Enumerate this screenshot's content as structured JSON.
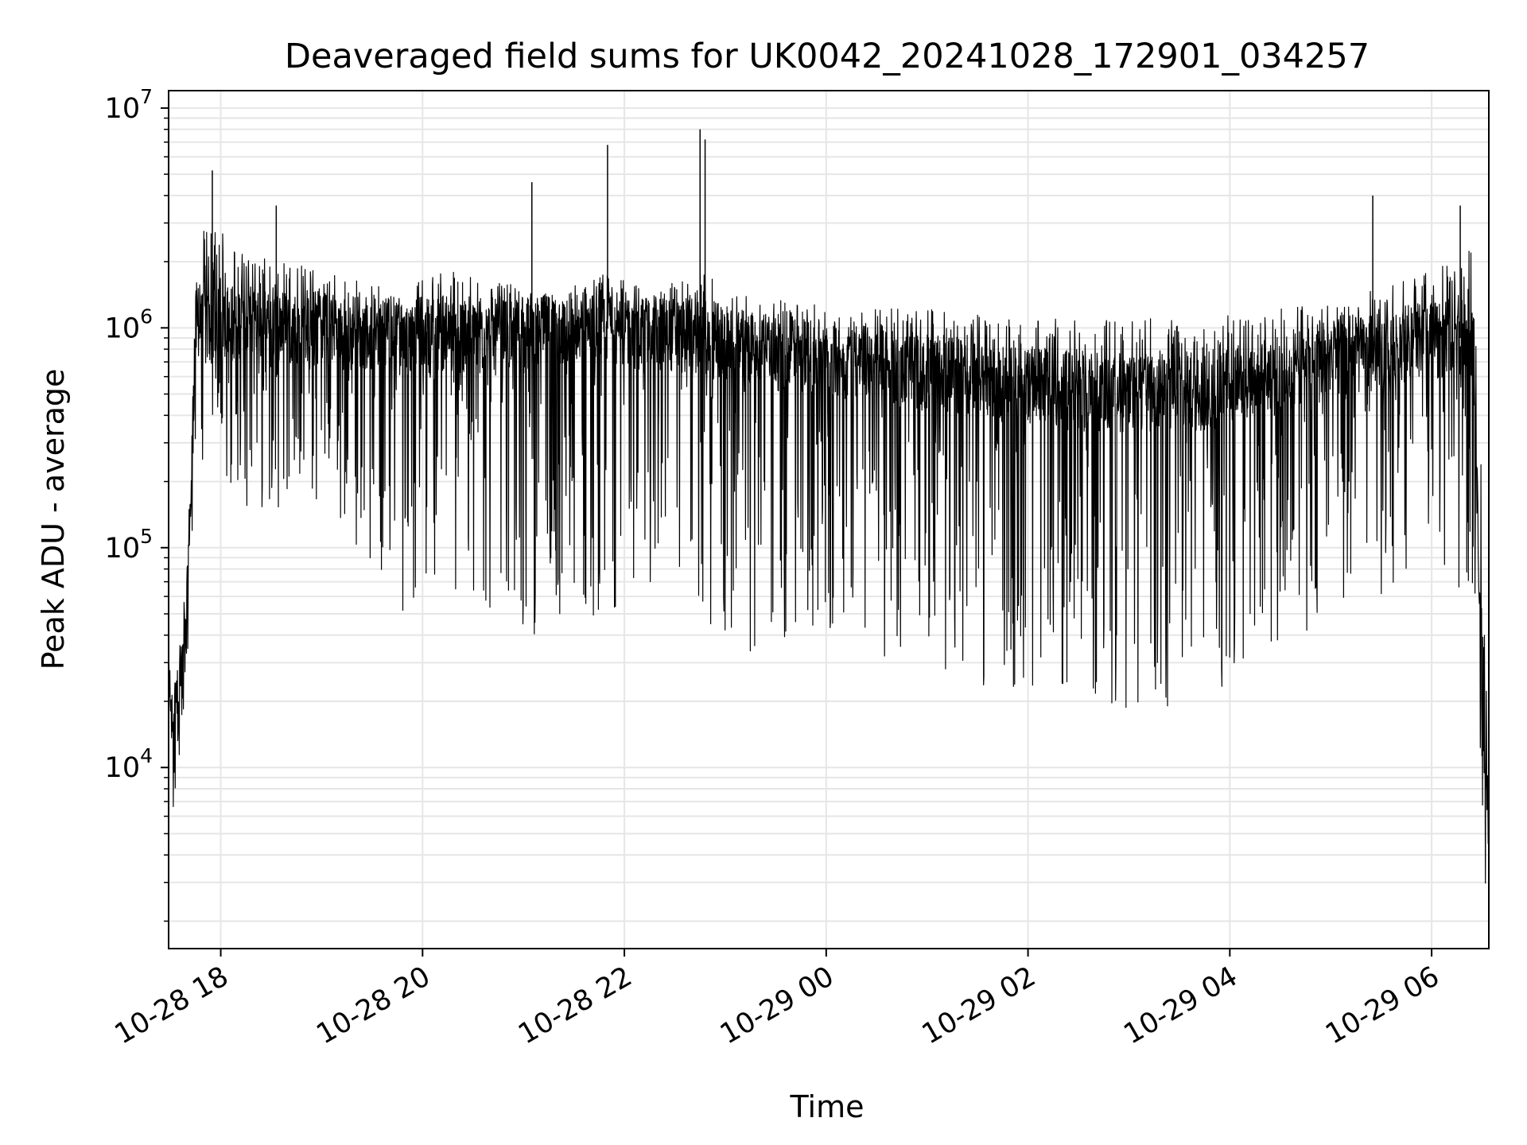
{
  "chart_data": {
    "type": "line",
    "title": "Deaveraged field sums for UK0042_20241028_172901_034257",
    "xlabel": "Time",
    "ylabel": "Peak ADU - average",
    "yscale": "log",
    "ylim": [
      1500,
      12000000
    ],
    "xlim": [
      "2024-10-28 17:29",
      "2024-10-29 06:34"
    ],
    "x_ticks": [
      {
        "label": "10-28 18",
        "time": "2024-10-28 18:00"
      },
      {
        "label": "10-28 20",
        "time": "2024-10-28 20:00"
      },
      {
        "label": "10-28 22",
        "time": "2024-10-28 22:00"
      },
      {
        "label": "10-29 00",
        "time": "2024-10-29 00:00"
      },
      {
        "label": "10-29 02",
        "time": "2024-10-29 02:00"
      },
      {
        "label": "10-29 04",
        "time": "2024-10-29 04:00"
      },
      {
        "label": "10-29 06",
        "time": "2024-10-29 06:00"
      }
    ],
    "y_ticks": [
      {
        "base": "10",
        "exp": "4",
        "value": 10000
      },
      {
        "base": "10",
        "exp": "5",
        "value": 100000
      },
      {
        "base": "10",
        "exp": "6",
        "value": 1000000
      },
      {
        "base": "10",
        "exp": "7",
        "value": 10000000
      }
    ],
    "grid": true,
    "series": [
      {
        "color": "#000000",
        "envelope_note": "dense noisy signal; values approximate",
        "x": [
          "2024-10-28 17:29",
          "2024-10-28 17:35",
          "2024-10-28 17:40",
          "2024-10-28 17:45",
          "2024-10-28 17:50",
          "2024-10-28 17:55",
          "2024-10-28 18:15",
          "2024-10-28 18:45",
          "2024-10-28 19:15",
          "2024-10-28 19:45",
          "2024-10-28 20:15",
          "2024-10-28 20:45",
          "2024-10-28 21:15",
          "2024-10-28 21:45",
          "2024-10-28 22:15",
          "2024-10-28 22:45",
          "2024-10-28 23:15",
          "2024-10-28 23:45",
          "2024-10-29 00:15",
          "2024-10-29 00:45",
          "2024-10-29 01:15",
          "2024-10-29 01:45",
          "2024-10-29 02:15",
          "2024-10-29 02:45",
          "2024-10-29 03:15",
          "2024-10-29 03:45",
          "2024-10-29 04:15",
          "2024-10-29 04:45",
          "2024-10-29 05:15",
          "2024-10-29 05:45",
          "2024-10-29 06:15",
          "2024-10-29 06:25",
          "2024-10-29 06:30",
          "2024-10-29 06:34"
        ],
        "upper": [
          30000,
          40000,
          80000,
          1500000,
          2800000,
          3000000,
          2200000,
          2000000,
          1700000,
          1500000,
          1900000,
          1600000,
          1500000,
          1800000,
          1500000,
          1800000,
          1400000,
          1300000,
          1200000,
          1300000,
          1200000,
          1100000,
          1100000,
          1100000,
          1150000,
          1100000,
          1200000,
          1300000,
          1400000,
          1700000,
          2000000,
          2500000,
          200000,
          60000
        ],
        "lower": [
          5000,
          6000,
          20000,
          200000,
          250000,
          200000,
          150000,
          150000,
          120000,
          50000,
          60000,
          40000,
          40000,
          50000,
          60000,
          40000,
          30000,
          40000,
          35000,
          30000,
          25000,
          20000,
          20000,
          18000,
          18000,
          18000,
          35000,
          35000,
          40000,
          70000,
          60000,
          70000,
          2500,
          3000
        ],
        "typical": [
          15000,
          20000,
          40000,
          1000000,
          1000000,
          1000000,
          1100000,
          1000000,
          1000000,
          900000,
          950000,
          900000,
          950000,
          1000000,
          950000,
          900000,
          800000,
          750000,
          700000,
          650000,
          600000,
          550000,
          550000,
          500000,
          500000,
          500000,
          600000,
          650000,
          750000,
          850000,
          900000,
          900000,
          15000,
          8000
        ]
      }
    ],
    "spikes": [
      {
        "time": "2024-10-28 17:55",
        "value": 5200000
      },
      {
        "time": "2024-10-28 18:33",
        "value": 3600000
      },
      {
        "time": "2024-10-28 21:05",
        "value": 4600000
      },
      {
        "time": "2024-10-28 21:50",
        "value": 6800000
      },
      {
        "time": "2024-10-28 22:45",
        "value": 8000000
      },
      {
        "time": "2024-10-28 22:48",
        "value": 7200000
      },
      {
        "time": "2024-10-29 05:25",
        "value": 4000000
      },
      {
        "time": "2024-10-29 06:17",
        "value": 3600000
      }
    ]
  }
}
